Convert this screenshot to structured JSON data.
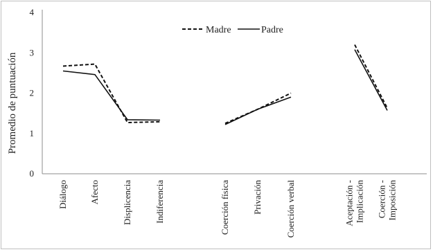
{
  "chart_data": {
    "type": "line",
    "ylabel": "Promedio de puntuación",
    "ylim": [
      0,
      4
    ],
    "yticks": [
      0,
      1,
      2,
      3,
      4
    ],
    "grid": false,
    "legend_position": "top",
    "categories": [
      "Diálogo",
      "Afecto",
      "Displicencia",
      "Indiferencia",
      "Coerción física",
      "Privación",
      "Coerción verbal",
      "Aceptación - Implicación",
      "Coerción - Imposición"
    ],
    "category_label_lines": [
      [
        "Diálogo"
      ],
      [
        "Afecto"
      ],
      [
        "Displicencia"
      ],
      [
        "Indiferencia"
      ],
      [
        "Coerción física"
      ],
      [
        "Privación"
      ],
      [
        "Coerción verbal"
      ],
      [
        "Aceptación -",
        "Implicación"
      ],
      [
        "Coerción -",
        "Imposición"
      ]
    ],
    "groups": [
      [
        0,
        1,
        2,
        3
      ],
      [
        4,
        5,
        6
      ],
      [
        7,
        8
      ]
    ],
    "series": [
      {
        "name": "Madre",
        "dash": "dashed",
        "values": [
          2.67,
          2.72,
          1.27,
          1.29,
          1.25,
          1.6,
          2.0,
          3.2,
          1.63
        ]
      },
      {
        "name": "Padre",
        "dash": "solid",
        "values": [
          2.55,
          2.46,
          1.34,
          1.33,
          1.22,
          1.6,
          1.9,
          3.08,
          1.57
        ]
      }
    ]
  }
}
